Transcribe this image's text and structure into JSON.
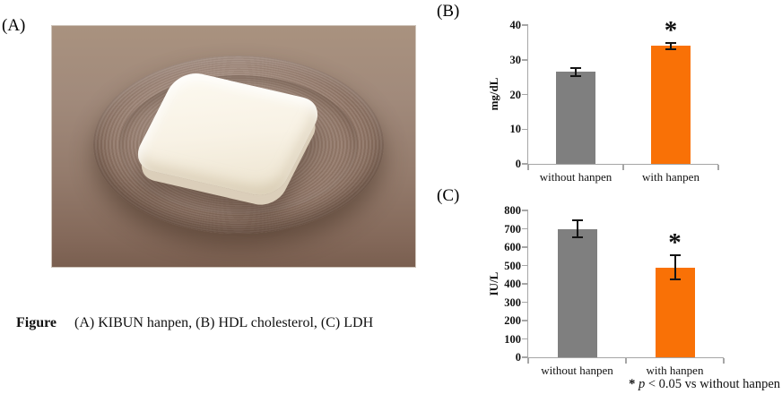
{
  "panels": {
    "a": {
      "label": "(A)"
    },
    "b": {
      "label": "(B)"
    },
    "c": {
      "label": "(C)"
    }
  },
  "caption": {
    "label": "Figure",
    "text": "(A) KIBUN hanpen, (B) HDL cholesterol,  (C) LDH"
  },
  "footnote": {
    "star": "*",
    "p": "p",
    "rest": "< 0.05 vs without hanpen"
  },
  "colors": {
    "bar_without_hanpen": "#7f7f7f",
    "bar_with_hanpen": "#f97106",
    "axis": "#a6a6a6",
    "photo_background": "#947b6c",
    "plate": "#8c7263",
    "hanpen": "#f8f2e5"
  },
  "chart_data": [
    {
      "id": "hdl",
      "type": "bar",
      "title": "HDL cholesterol",
      "panel": "(B)",
      "categories": [
        "without hanpen",
        "with hanpen"
      ],
      "values": [
        26.5,
        34
      ],
      "errors": [
        1.5,
        1.2
      ],
      "ylabel": "mg/dL",
      "xlabel": "",
      "ylim": [
        0,
        40
      ],
      "yticks": [
        0,
        10,
        20,
        30,
        40
      ],
      "grid": false,
      "legend": false,
      "bar_colors": [
        "#7f7f7f",
        "#f97106"
      ],
      "significance": [
        false,
        true
      ],
      "sig_marker": "*"
    },
    {
      "id": "ldh",
      "type": "bar",
      "title": "LDH",
      "panel": "(C)",
      "categories": [
        "without hanpen",
        "with hanpen"
      ],
      "values": [
        700,
        490
      ],
      "errors": [
        50,
        70
      ],
      "ylabel": "IU/L",
      "xlabel": "",
      "ylim": [
        0,
        800
      ],
      "yticks": [
        0,
        100,
        200,
        300,
        400,
        500,
        600,
        700,
        800
      ],
      "grid": false,
      "legend": false,
      "bar_colors": [
        "#7f7f7f",
        "#f97106"
      ],
      "significance": [
        false,
        true
      ],
      "sig_marker": "*"
    }
  ]
}
